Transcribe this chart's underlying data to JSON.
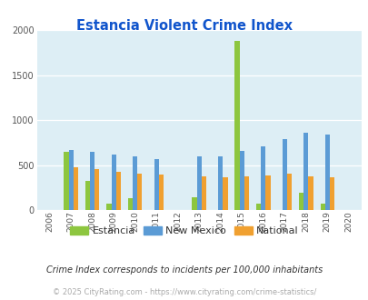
{
  "title": "Estancia Violent Crime Index",
  "years": [
    2006,
    2007,
    2008,
    2009,
    2010,
    2011,
    2012,
    2013,
    2014,
    2015,
    2016,
    2017,
    2018,
    2019,
    2020
  ],
  "estancia": [
    0,
    650,
    320,
    75,
    130,
    0,
    0,
    140,
    0,
    1880,
    70,
    0,
    190,
    75,
    0
  ],
  "new_mexico": [
    0,
    670,
    645,
    620,
    595,
    565,
    0,
    600,
    600,
    660,
    705,
    785,
    860,
    840,
    0
  ],
  "national": [
    0,
    470,
    455,
    425,
    405,
    390,
    0,
    370,
    365,
    375,
    380,
    400,
    375,
    365,
    0
  ],
  "estancia_color": "#8dc63f",
  "new_mexico_color": "#5b9bd5",
  "national_color": "#f0a030",
  "plot_bg": "#ddeef5",
  "title_color": "#1155cc",
  "ylim": [
    0,
    2000
  ],
  "yticks": [
    0,
    500,
    1000,
    1500,
    2000
  ],
  "footnote": "Crime Index corresponds to incidents per 100,000 inhabitants",
  "copyright": "© 2025 CityRating.com - https://www.cityrating.com/crime-statistics/",
  "copyright_color": "#aaaaaa",
  "footnote_color": "#333333",
  "legend_labels": [
    "Estancia",
    "New Mexico",
    "National"
  ]
}
